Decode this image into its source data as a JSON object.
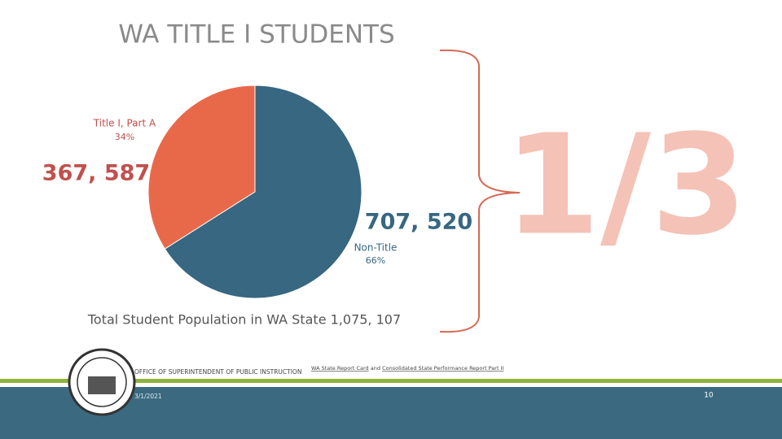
{
  "chart_data": {
    "type": "pie",
    "title": "WA TITLE I STUDENTS",
    "categories": [
      "Title I, Part A",
      "Non-Title"
    ],
    "values": [
      34,
      66
    ],
    "value_labels": [
      "34%",
      "66%"
    ],
    "count_labels": [
      "367, 587",
      "707, 520"
    ],
    "colors": [
      "#e8694a",
      "#376781"
    ],
    "total_label": "Total Student Population in WA State 1,075, 107"
  },
  "callout": "1/3",
  "footer": {
    "office": "OFFICE OF SUPERINTENDENT OF PUBLIC INSTRUCTION",
    "date": "3/1/2021",
    "source": [
      "WA State Report Card",
      "and",
      "Consolidated State Performance Report Part II"
    ],
    "page": 10
  }
}
